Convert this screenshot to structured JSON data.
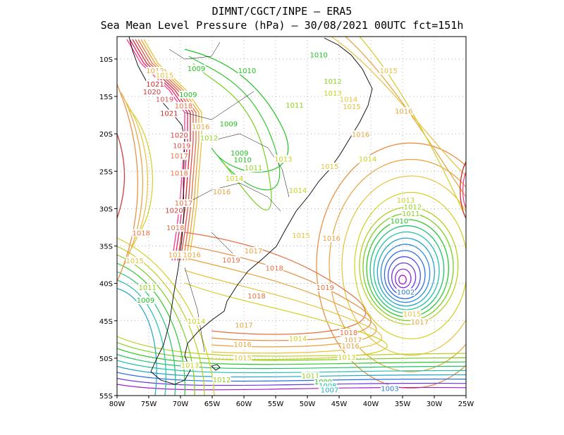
{
  "title": {
    "line1": "DIMNT/CGCT/INPE –  ERA5",
    "line2": "Sea Mean Level Pressure (hPa) – 30/08/2021 00UTC fct=151h"
  },
  "map": {
    "lon_range": [
      -80,
      -25
    ],
    "lat_range": [
      -55,
      -7
    ],
    "lon_ticks": [
      "80W",
      "75W",
      "70W",
      "65W",
      "60W",
      "55W",
      "50W",
      "45W",
      "40W",
      "35W",
      "30W",
      "25W"
    ],
    "lat_ticks": [
      "10S",
      "15S",
      "20S",
      "25S",
      "30S",
      "35S",
      "40S",
      "45S",
      "50S",
      "55S"
    ],
    "grid": "dotted",
    "low_center": {
      "lon": -35,
      "lat": -39.5
    },
    "contour_labels": [
      {
        "text": "1012",
        "lon": -74,
        "lat": -11.8,
        "color": "#e8a23a"
      },
      {
        "text": "1015",
        "lon": -72.5,
        "lat": -12.4,
        "color": "#e8c23a"
      },
      {
        "text": "1009",
        "lon": -67.5,
        "lat": -11.5,
        "color": "#21c221"
      },
      {
        "text": "1010",
        "lon": -59.5,
        "lat": -11.8,
        "color": "#21c221"
      },
      {
        "text": "1010",
        "lon": -48.2,
        "lat": -9.7,
        "color": "#21c221"
      },
      {
        "text": "1021",
        "lon": -74,
        "lat": -13.6,
        "color": "#d22828"
      },
      {
        "text": "1020",
        "lon": -74.5,
        "lat": -14.6,
        "color": "#d23c3c"
      },
      {
        "text": "1019",
        "lon": -72.5,
        "lat": -15.6,
        "color": "#e05050"
      },
      {
        "text": "1009",
        "lon": -68.8,
        "lat": -15,
        "color": "#21c221"
      },
      {
        "text": "1012",
        "lon": -46,
        "lat": -13.2,
        "color": "#8fd21c"
      },
      {
        "text": "1013",
        "lon": -46,
        "lat": -14.8,
        "color": "#c7d21c"
      },
      {
        "text": "1014",
        "lon": -43.5,
        "lat": -15.6,
        "color": "#e8c23a"
      },
      {
        "text": "1015",
        "lon": -43,
        "lat": -16.6,
        "color": "#e8c23a"
      },
      {
        "text": "1015",
        "lon": -37.2,
        "lat": -11.8,
        "color": "#e8c23a"
      },
      {
        "text": "1016",
        "lon": -34.8,
        "lat": -17.2,
        "color": "#e8a23a"
      },
      {
        "text": "1011",
        "lon": -52,
        "lat": -16.4,
        "color": "#8fd21c"
      },
      {
        "text": "1021",
        "lon": -71.8,
        "lat": -17.5,
        "color": "#d22828"
      },
      {
        "text": "1018",
        "lon": -69.5,
        "lat": -16.5,
        "color": "#e87040"
      },
      {
        "text": "1016",
        "lon": -66.8,
        "lat": -19.3,
        "color": "#e8a23a"
      },
      {
        "text": "1009",
        "lon": -62.4,
        "lat": -18.9,
        "color": "#21c221"
      },
      {
        "text": "1020",
        "lon": -70.2,
        "lat": -20.4,
        "color": "#d23c3c"
      },
      {
        "text": "1012",
        "lon": -65.5,
        "lat": -20.8,
        "color": "#8fd21c"
      },
      {
        "text": "1016",
        "lon": -41.6,
        "lat": -20.3,
        "color": "#e8a23a"
      },
      {
        "text": "1019",
        "lon": -69.8,
        "lat": -21.8,
        "color": "#e05050"
      },
      {
        "text": "1017",
        "lon": -70.2,
        "lat": -23.2,
        "color": "#e87040"
      },
      {
        "text": "1009",
        "lon": -60.7,
        "lat": -22.8,
        "color": "#21c221"
      },
      {
        "text": "1010",
        "lon": -60.2,
        "lat": -23.7,
        "color": "#21c221"
      },
      {
        "text": "1011",
        "lon": -58.5,
        "lat": -24.8,
        "color": "#8fd21c"
      },
      {
        "text": "1013",
        "lon": -53.8,
        "lat": -23.6,
        "color": "#c7d21c"
      },
      {
        "text": "1015",
        "lon": -46.5,
        "lat": -24.6,
        "color": "#e8c23a"
      },
      {
        "text": "1014",
        "lon": -40.5,
        "lat": -23.6,
        "color": "#c7d21c"
      },
      {
        "text": "1018",
        "lon": -70.2,
        "lat": -25.5,
        "color": "#e87040"
      },
      {
        "text": "1014",
        "lon": -61.5,
        "lat": -26.2,
        "color": "#c7d21c"
      },
      {
        "text": "1016",
        "lon": -63.5,
        "lat": -28,
        "color": "#e8a23a"
      },
      {
        "text": "1014",
        "lon": -51.5,
        "lat": -27.8,
        "color": "#c7d21c"
      },
      {
        "text": "1017",
        "lon": -69.5,
        "lat": -29.5,
        "color": "#e87040"
      },
      {
        "text": "1020",
        "lon": -71,
        "lat": -30.5,
        "color": "#d23c3c"
      },
      {
        "text": "1013",
        "lon": -34.5,
        "lat": -29.1,
        "color": "#c7d21c"
      },
      {
        "text": "1012",
        "lon": -33.4,
        "lat": -30,
        "color": "#8fd21c"
      },
      {
        "text": "1011",
        "lon": -33.7,
        "lat": -30.9,
        "color": "#8fd21c"
      },
      {
        "text": "1010",
        "lon": -35.5,
        "lat": -31.9,
        "color": "#21c221"
      },
      {
        "text": "1018",
        "lon": -70.8,
        "lat": -32.8,
        "color": "#e87040"
      },
      {
        "text": "1018",
        "lon": -76.2,
        "lat": -33.5,
        "color": "#e87040"
      },
      {
        "text": "1015",
        "lon": -51,
        "lat": -33.8,
        "color": "#e8c23a"
      },
      {
        "text": "1016",
        "lon": -46.2,
        "lat": -34.2,
        "color": "#e8a23a"
      },
      {
        "text": "1017",
        "lon": -58.5,
        "lat": -35.9,
        "color": "#e8a23a"
      },
      {
        "text": "1017",
        "lon": -70.5,
        "lat": -36.4,
        "color": "#e8a23a"
      },
      {
        "text": "1016",
        "lon": -68.2,
        "lat": -36.4,
        "color": "#e8a23a"
      },
      {
        "text": "1015",
        "lon": -77.2,
        "lat": -37.2,
        "color": "#e8c23a"
      },
      {
        "text": "1019",
        "lon": -62,
        "lat": -37.1,
        "color": "#e87040"
      },
      {
        "text": "1018",
        "lon": -55.2,
        "lat": -38.2,
        "color": "#e87040"
      },
      {
        "text": "1011",
        "lon": -75.2,
        "lat": -40.8,
        "color": "#8fd21c"
      },
      {
        "text": "1019",
        "lon": -47.2,
        "lat": -40.8,
        "color": "#e87040"
      },
      {
        "text": "1018",
        "lon": -58,
        "lat": -41.9,
        "color": "#e87040"
      },
      {
        "text": "1009",
        "lon": -75.5,
        "lat": -42.5,
        "color": "#21c221"
      },
      {
        "text": "1002",
        "lon": -34.5,
        "lat": -41.4,
        "color": "#2a7ad8"
      },
      {
        "text": "1015",
        "lon": -33.5,
        "lat": -44.3,
        "color": "#e8c23a"
      },
      {
        "text": "1017",
        "lon": -32.3,
        "lat": -45.4,
        "color": "#e8a23a"
      },
      {
        "text": "1014",
        "lon": -67.5,
        "lat": -45.3,
        "color": "#c7d21c"
      },
      {
        "text": "1017",
        "lon": -60,
        "lat": -45.8,
        "color": "#e8a23a"
      },
      {
        "text": "1018",
        "lon": -43.5,
        "lat": -46.8,
        "color": "#e87040"
      },
      {
        "text": "1017",
        "lon": -42.8,
        "lat": -47.8,
        "color": "#e8a23a"
      },
      {
        "text": "1014",
        "lon": -51.5,
        "lat": -47.6,
        "color": "#c7d21c"
      },
      {
        "text": "1016",
        "lon": -43.2,
        "lat": -48.6,
        "color": "#e8a23a"
      },
      {
        "text": "1016",
        "lon": -60.2,
        "lat": -48.4,
        "color": "#e8a23a"
      },
      {
        "text": "1015",
        "lon": -60.2,
        "lat": -50.2,
        "color": "#e8c23a"
      },
      {
        "text": "1013",
        "lon": -43.8,
        "lat": -50.1,
        "color": "#c7d21c"
      },
      {
        "text": "1013",
        "lon": -68.5,
        "lat": -51.2,
        "color": "#c7d21c"
      },
      {
        "text": "1011",
        "lon": -49.5,
        "lat": -52.6,
        "color": "#8fd21c"
      },
      {
        "text": "1012",
        "lon": -63.5,
        "lat": -53.1,
        "color": "#8fd21c"
      },
      {
        "text": "1009",
        "lon": -47.5,
        "lat": -53.4,
        "color": "#21c221"
      },
      {
        "text": "1008",
        "lon": -46.8,
        "lat": -53.9,
        "color": "#21c29a"
      },
      {
        "text": "1007",
        "lon": -46.5,
        "lat": -54.5,
        "color": "#21b2c2"
      },
      {
        "text": "1003",
        "lon": -37,
        "lat": -54.3,
        "color": "#2a7ad8"
      }
    ]
  }
}
